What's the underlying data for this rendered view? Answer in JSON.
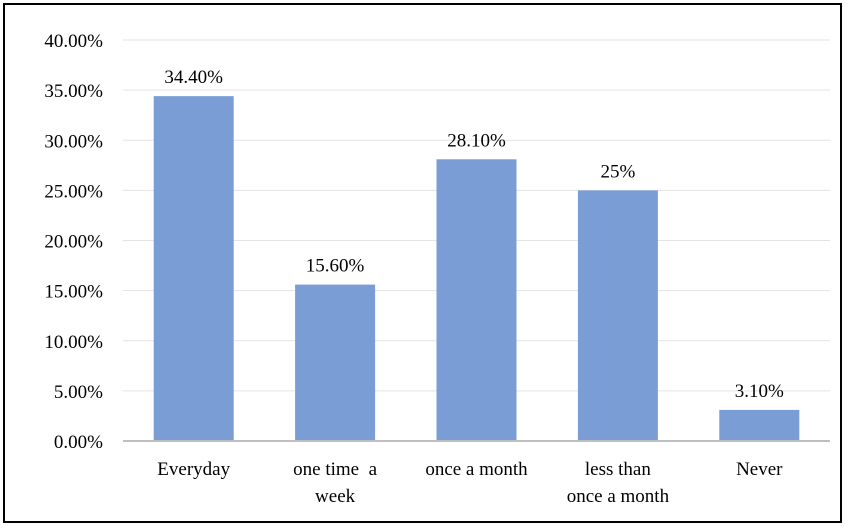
{
  "chart_data": {
    "type": "bar",
    "categories": [
      "Everyday",
      "one time a week",
      "once a month",
      "less than once a month",
      "Never"
    ],
    "category_lines": [
      [
        "Everyday"
      ],
      [
        "one time  a",
        "week"
      ],
      [
        "once a month"
      ],
      [
        "less than",
        "once a month"
      ],
      [
        "Never"
      ]
    ],
    "values": [
      34.4,
      15.6,
      28.1,
      25.0,
      3.1
    ],
    "data_labels": [
      "34.40%",
      "15.60%",
      "28.10%",
      "25%",
      "3.10%"
    ],
    "y_ticks": [
      "0.00%",
      "5.00%",
      "10.00%",
      "15.00%",
      "20.00%",
      "25.00%",
      "30.00%",
      "35.00%",
      "40.00%"
    ],
    "ylim": [
      0,
      40
    ],
    "grid": true,
    "legend": "none",
    "title": "",
    "xlabel": "",
    "ylabel": "",
    "colors": {
      "bar": "#7a9dd6",
      "grid": "#e3e3e3",
      "axis": "#bfbfbf"
    }
  }
}
